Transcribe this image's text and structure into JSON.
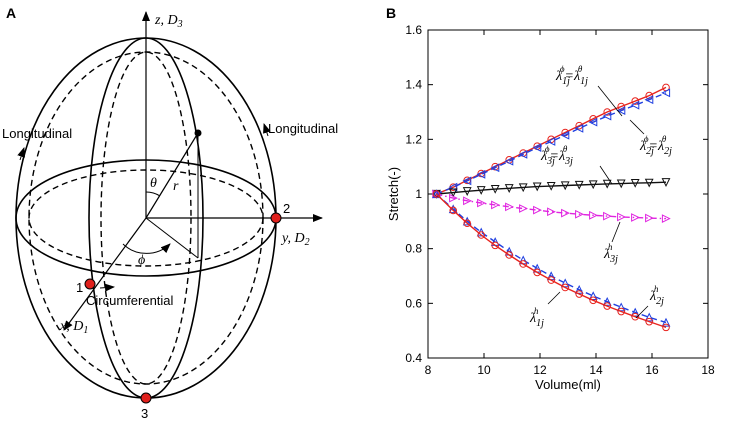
{
  "panel_a": {
    "label": "A",
    "axis_z": "z, D",
    "axis_z_sub": "3",
    "axis_y": "y, D",
    "axis_y_sub": "2",
    "axis_x": "x, D",
    "axis_x_sub": "1",
    "theta": "θ",
    "r": "r",
    "phi": "ϕ",
    "longitudinal_left": "Longitudinal",
    "longitudinal_right": "Longitudinal",
    "circumferential": "Circumferential",
    "point1": "1",
    "point2": "2",
    "point3": "3",
    "point_color": "#e0201c"
  },
  "panel_b": {
    "label": "B",
    "labels": {
      "top_lambda": "λ",
      "top_sub1": "1j",
      "top_sup1": "ϕ",
      "top_eq": "=",
      "top_sub2": "1j",
      "top_sup2": "θ",
      "mid_sub1": "3j",
      "mid_sup1": "ϕ",
      "mid_sub2": "3j",
      "mid_sup2": "θ",
      "right_sub1": "2j",
      "right_sup1": "ϕ",
      "right_sub2": "2j",
      "right_sup2": "θ",
      "l3h_sub": "3j",
      "l3h_sup": "h",
      "l2h_sub": "2j",
      "l2h_sup": "h",
      "l1h_sub": "1j",
      "l1h_sup": "h"
    }
  },
  "chart_data": {
    "type": "line",
    "title": "",
    "xlabel": "Volume(ml)",
    "ylabel": "Stretch(-)",
    "xlim": [
      8,
      18
    ],
    "ylim": [
      0.4,
      1.6
    ],
    "xticks": [
      8,
      10,
      12,
      14,
      16,
      18
    ],
    "yticks": [
      0.4,
      0.6,
      0.8,
      1.0,
      1.2,
      1.4,
      1.6
    ],
    "xtick_labels": [
      "8",
      "10",
      "12",
      "14",
      "16",
      "18"
    ],
    "ytick_labels": [
      "0.4",
      "0.6",
      "0.8",
      "1",
      "1.2",
      "1.4",
      "1.6"
    ],
    "x": [
      8.3,
      8.9,
      9.4,
      9.9,
      10.4,
      10.9,
      11.4,
      11.9,
      12.4,
      12.9,
      13.4,
      13.9,
      14.4,
      14.9,
      15.4,
      15.9,
      16.5
    ],
    "series": [
      {
        "name": "λ1j^ϕ = λ1j^θ (red)",
        "color": "#e8231d",
        "style": "solid",
        "marker": "circle",
        "values": [
          1.0,
          1.025,
          1.05,
          1.075,
          1.1,
          1.125,
          1.15,
          1.175,
          1.2,
          1.225,
          1.25,
          1.275,
          1.3,
          1.32,
          1.34,
          1.36,
          1.39
        ]
      },
      {
        "name": "λ2j^ϕ = λ2j^θ (blue)",
        "color": "#1f3fe0",
        "style": "dashed",
        "marker": "triangle-left",
        "values": [
          1.0,
          1.025,
          1.048,
          1.072,
          1.096,
          1.12,
          1.145,
          1.17,
          1.192,
          1.215,
          1.24,
          1.263,
          1.285,
          1.305,
          1.325,
          1.345,
          1.37
        ]
      },
      {
        "name": "λ3j^ϕ = λ3j^θ (black)",
        "color": "#111111",
        "style": "solid",
        "marker": "triangle-down",
        "values": [
          1.0,
          1.005,
          1.01,
          1.014,
          1.018,
          1.021,
          1.024,
          1.027,
          1.029,
          1.031,
          1.033,
          1.035,
          1.037,
          1.038,
          1.04,
          1.041,
          1.043
        ]
      },
      {
        "name": "λ3j^h (magenta)",
        "color": "#e024e0",
        "style": "dashdot",
        "marker": "triangle-right",
        "values": [
          1.0,
          0.985,
          0.975,
          0.967,
          0.96,
          0.953,
          0.947,
          0.941,
          0.935,
          0.93,
          0.926,
          0.922,
          0.919,
          0.916,
          0.914,
          0.912,
          0.91
        ]
      },
      {
        "name": "λ2j^h (blue)",
        "color": "#1f3fe0",
        "style": "dashed",
        "marker": "triangle-up",
        "values": [
          1.0,
          0.945,
          0.9,
          0.86,
          0.825,
          0.79,
          0.758,
          0.728,
          0.7,
          0.674,
          0.65,
          0.627,
          0.606,
          0.586,
          0.567,
          0.549,
          0.53
        ]
      },
      {
        "name": "λ1j^h (red)",
        "color": "#e8231d",
        "style": "solid",
        "marker": "circle",
        "values": [
          1.0,
          0.94,
          0.893,
          0.85,
          0.812,
          0.777,
          0.744,
          0.713,
          0.685,
          0.658,
          0.634,
          0.611,
          0.59,
          0.57,
          0.551,
          0.533,
          0.512
        ]
      }
    ]
  }
}
